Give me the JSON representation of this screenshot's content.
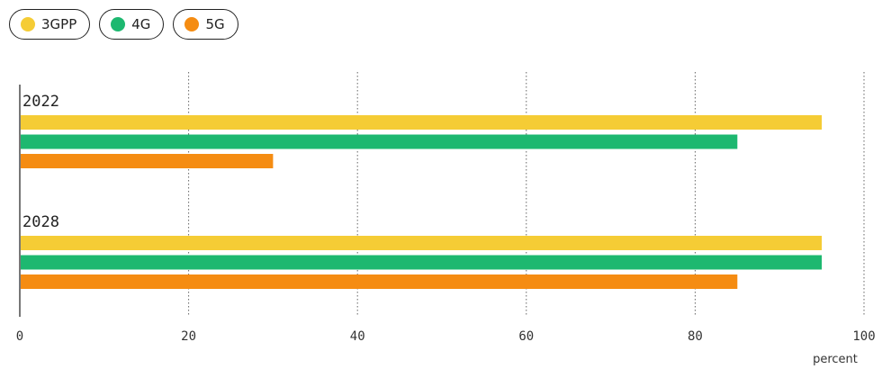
{
  "legend": [
    {
      "label": "3GPP",
      "color": "#f5cc35"
    },
    {
      "label": "4G",
      "color": "#1db870"
    },
    {
      "label": "5G",
      "color": "#f58c12"
    }
  ],
  "chart_data": {
    "type": "bar",
    "orientation": "horizontal",
    "categories": [
      "2022",
      "2028"
    ],
    "series": [
      {
        "name": "3GPP",
        "color": "#f5cc35",
        "values": [
          95,
          95
        ]
      },
      {
        "name": "4G",
        "color": "#1db870",
        "values": [
          85,
          95
        ]
      },
      {
        "name": "5G",
        "color": "#f58c12",
        "values": [
          30,
          85
        ]
      }
    ],
    "xlim": [
      0,
      100
    ],
    "xticks": [
      0,
      20,
      40,
      60,
      80,
      100
    ],
    "xlabel": "percent",
    "grid": "vertical dotted",
    "legend_position": "top-left"
  }
}
